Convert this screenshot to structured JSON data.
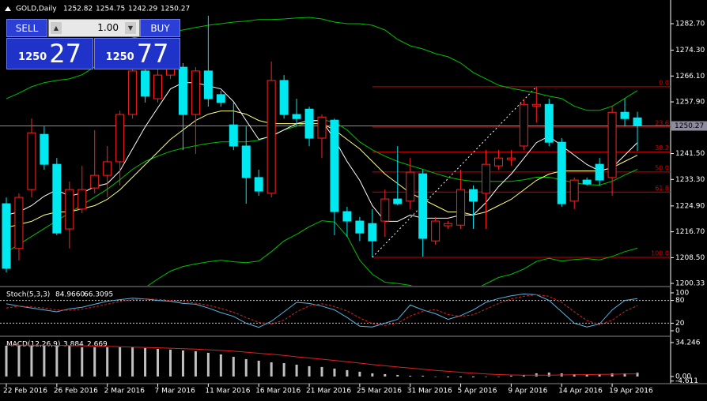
{
  "chart_data": {
    "type": "candlestick",
    "symbol": "GOLD,Daily",
    "bull_color": "#ff2020",
    "bear_color": "#00e8f0",
    "categories": [
      "22 Feb 2016",
      null,
      null,
      null,
      "26 Feb 2016",
      null,
      null,
      null,
      "2 Mar 2016",
      null,
      null,
      null,
      "7 Mar 2016",
      null,
      null,
      null,
      "11 Mar 2016",
      null,
      null,
      null,
      "16 Mar 2016",
      null,
      null,
      null,
      "21 Mar 2016",
      null,
      null,
      null,
      "25 Mar 2016",
      null,
      null,
      null,
      "31 Mar 2016",
      null,
      null,
      null,
      "5 Apr 2016",
      null,
      null,
      null,
      "9 Apr 2016",
      null,
      null,
      null,
      "14 Apr 2016",
      null,
      null,
      null,
      "19 Apr 2016",
      null,
      null
    ],
    "candles": [
      [
        1225.6,
        1227.6,
        1203.8,
        1205.1
      ],
      [
        1211.4,
        1228.9,
        1207.6,
        1227.6
      ],
      [
        1230.1,
        1252.6,
        1227.6,
        1248.1
      ],
      [
        1247.6,
        1250.1,
        1236.4,
        1238.1
      ],
      [
        1238.1,
        1240.1,
        1215.6,
        1216.3
      ],
      [
        1217.6,
        1232.6,
        1211.4,
        1230.1
      ],
      [
        1223.9,
        1237.6,
        1222.6,
        1230.1
      ],
      [
        1230.6,
        1248.9,
        1228.9,
        1234.6
      ],
      [
        1234.6,
        1243.9,
        1227.6,
        1238.9
      ],
      [
        1238.9,
        1255.1,
        1231.4,
        1253.9
      ],
      [
        1253.9,
        1270.2,
        1252.6,
        1267.7
      ],
      [
        1267.7,
        1271.4,
        1257.7,
        1259.7
      ],
      [
        1258.9,
        1270.2,
        1257.7,
        1266.4
      ],
      [
        1266.4,
        1271.4,
        1265.2,
        1268.9
      ],
      [
        1268.9,
        1270.2,
        1242.6,
        1253.9
      ],
      [
        1253.9,
        1268.9,
        1241.4,
        1267.7
      ],
      [
        1267.7,
        1285.2,
        1256.4,
        1258.9
      ],
      [
        1260.2,
        1261.4,
        1256.4,
        1257.7
      ],
      [
        1250.6,
        1257.7,
        1242.6,
        1243.9
      ],
      [
        1243.9,
        1250.1,
        1225.6,
        1233.9
      ],
      [
        1233.9,
        1236.4,
        1228.1,
        1229.6
      ],
      [
        1228.9,
        1270.7,
        1227.6,
        1264.7
      ],
      [
        1264.7,
        1266.4,
        1252.6,
        1253.9
      ],
      [
        1253.9,
        1258.9,
        1250.1,
        1252.6
      ],
      [
        1255.6,
        1256.4,
        1243.9,
        1246.4
      ],
      [
        1246.4,
        1253.9,
        1240.1,
        1253.1
      ],
      [
        1252.1,
        1252.6,
        1215.6,
        1223.1
      ],
      [
        1223.1,
        1224.6,
        1215.1,
        1220.1
      ],
      [
        1220.1,
        1221.4,
        1213.8,
        1216.3
      ],
      [
        1219.3,
        1223.9,
        1208.6,
        1213.8
      ],
      [
        1220.1,
        1230.1,
        1215.1,
        1227.1
      ],
      [
        1227.1,
        1243.9,
        1225.1,
        1225.6
      ],
      [
        1226.4,
        1240.1,
        1223.9,
        1235.6
      ],
      [
        1235.1,
        1236.4,
        1208.8,
        1214.6
      ],
      [
        1213.8,
        1221.4,
        1212.6,
        1220.1
      ],
      [
        1218.6,
        1220.1,
        1217.6,
        1219.3
      ],
      [
        1218.8,
        1236.4,
        1217.6,
        1230.1
      ],
      [
        1230.1,
        1231.4,
        1217.6,
        1226.4
      ],
      [
        1228.9,
        1242.6,
        1217.6,
        1238.1
      ],
      [
        1237.6,
        1242.6,
        1236.4,
        1240.1
      ],
      [
        1239.6,
        1242.6,
        1237.6,
        1240.1
      ],
      [
        1243.9,
        1258.9,
        1242.6,
        1257.1
      ],
      [
        1256.6,
        1262.7,
        1251.4,
        1257.1
      ],
      [
        1257.1,
        1258.9,
        1243.9,
        1245.1
      ],
      [
        1245.1,
        1246.4,
        1224.6,
        1225.6
      ],
      [
        1226.4,
        1233.9,
        1223.9,
        1233.1
      ],
      [
        1233.1,
        1233.9,
        1231.4,
        1231.9
      ],
      [
        1238.1,
        1240.1,
        1231.4,
        1233.1
      ],
      [
        1233.9,
        1256.4,
        1228.1,
        1254.6
      ],
      [
        1254.6,
        1258.9,
        1250.1,
        1252.6
      ],
      [
        1252.82,
        1254.75,
        1242.29,
        1250.27
      ]
    ],
    "ylim": [
      1199.58,
      1290.21
    ],
    "yticks": [
      {
        "value": 1282.7,
        "label": "1282.70"
      },
      {
        "value": 1274.3,
        "label": "1274.30"
      },
      {
        "value": 1266.1,
        "label": "1266.10"
      },
      {
        "value": 1257.9,
        "label": "1257.90"
      },
      {
        "value": 1241.5,
        "label": "1241.50"
      },
      {
        "value": 1233.3,
        "label": "1233.30"
      },
      {
        "value": 1224.9,
        "label": "1224.90"
      },
      {
        "value": 1216.7,
        "label": "1216.70"
      },
      {
        "value": 1208.5,
        "label": "1208.50"
      },
      1200.33
    ],
    "indicators": [
      {
        "color": "#00c000",
        "values": [
          1258.9,
          1260.7,
          1262.7,
          1264.0,
          1264.7,
          1265.2,
          1266.5,
          1269.0,
          1272.7,
          1276.5,
          1278.2,
          1279.0,
          1279.7,
          1280.2,
          1280.7,
          1281.5,
          1282.2,
          1282.7,
          1283.2,
          1283.5,
          1284.0,
          1284.0,
          1284.2,
          1284.5,
          1284.7,
          1284.2,
          1283.2,
          1282.7,
          1282.7,
          1282.2,
          1280.7,
          1277.7,
          1275.7,
          1274.7,
          1273.2,
          1272.2,
          1270.2,
          1267.2,
          1265.2,
          1263.2,
          1262.2,
          1261.5,
          1260.7,
          1259.7,
          1259.0,
          1256.5,
          1255.2,
          1255.2,
          1256.5,
          1259.0,
          1261.5
        ]
      },
      {
        "color": "#00c000",
        "values": [
          1210.2,
          1212.7,
          1215.2,
          1217.7,
          1220.2,
          1222.7,
          1225.2,
          1227.7,
          1230.2,
          1233.2,
          1236.5,
          1239.0,
          1240.7,
          1242.2,
          1243.2,
          1244.0,
          1244.7,
          1245.2,
          1245.2,
          1245.2,
          1245.7,
          1247.2,
          1249.0,
          1250.2,
          1251.5,
          1252.2,
          1251.5,
          1249.0,
          1245.2,
          1242.7,
          1240.7,
          1239.0,
          1237.7,
          1236.5,
          1235.2,
          1234.0,
          1233.2,
          1232.7,
          1232.7,
          1232.7,
          1232.7,
          1233.2,
          1234.0,
          1234.0,
          1233.2,
          1232.2,
          1231.7,
          1231.5,
          1232.7,
          1234.7,
          1236.5
        ]
      },
      {
        "color": "#00c000",
        "values": [
          1161.5,
          1164.7,
          1167.7,
          1171.4,
          1175.7,
          1180.2,
          1183.9,
          1186.4,
          1187.7,
          1189.9,
          1194.8,
          1199.0,
          1201.7,
          1204.2,
          1205.7,
          1206.5,
          1207.2,
          1207.7,
          1207.2,
          1206.9,
          1207.4,
          1210.4,
          1213.8,
          1215.9,
          1218.3,
          1220.2,
          1219.8,
          1215.3,
          1207.7,
          1203.2,
          1200.7,
          1200.3,
          1199.7,
          1198.3,
          1197.2,
          1195.8,
          1196.2,
          1198.2,
          1200.2,
          1202.2,
          1203.2,
          1204.9,
          1207.3,
          1208.3,
          1207.4,
          1207.9,
          1208.2,
          1207.8,
          1208.9,
          1210.4,
          1211.5
        ]
      },
      {
        "color": "#ffff80",
        "values": [
          1218,
          1219,
          1220,
          1222,
          1223,
          1223,
          1224,
          1225,
          1227,
          1230,
          1234,
          1238,
          1242,
          1246,
          1249,
          1252,
          1254,
          1255,
          1255,
          1254,
          1252,
          1251,
          1251,
          1251,
          1251,
          1251,
          1249,
          1246,
          1243,
          1239,
          1235,
          1232,
          1229,
          1227,
          1225,
          1223,
          1223,
          1222,
          1223,
          1225,
          1227,
          1230,
          1233,
          1235,
          1236,
          1236,
          1236,
          1236,
          1237,
          1239,
          1241
        ]
      },
      {
        "color": "#ffffff",
        "values": [
          1222,
          1223,
          1225,
          1228,
          1230,
          1228,
          1229,
          1231,
          1232,
          1236,
          1243,
          1250,
          1256,
          1262,
          1264,
          1264,
          1263,
          1262,
          1258,
          1252,
          1246,
          1247,
          1249,
          1251,
          1252,
          1252,
          1246,
          1239,
          1233,
          1225,
          1220,
          1220,
          1222,
          1221,
          1221,
          1221,
          1222,
          1222,
          1226,
          1231,
          1235,
          1240,
          1245,
          1247,
          1244,
          1241,
          1238,
          1236,
          1237,
          1241,
          1245
        ]
      }
    ],
    "fib": {
      "color": "#d00000",
      "levels": [
        {
          "value": 0,
          "label": "0.0"
        },
        23.6,
        38.2,
        {
          "value": 50,
          "label": "50.0"
        },
        61.8,
        {
          "value": 100,
          "label": "100.0"
        }
      ],
      "prices": [
        1262.7,
        1249.9,
        1242.0,
        1235.65,
        1229.3,
        1208.6
      ]
    },
    "trade_panel": {
      "sell": "SELL",
      "buy": "BUY",
      "lots": "1.00",
      "bid_big": "1250",
      "bid": "27",
      "ask_big": "1250",
      "ask": "77"
    },
    "stoch": {
      "title": "Stoch(5,3,3)",
      "value_labels": [
        "84.9660",
        "66.3095"
      ],
      "grid": true,
      "ylim": [
        -10.4,
        112.5
      ],
      "yticks": [
        100,
        80,
        20,
        0
      ],
      "main": [
        71,
        65,
        60,
        55,
        50,
        58,
        62,
        70,
        78,
        82,
        86,
        84,
        80,
        78,
        72,
        70,
        60,
        48,
        38,
        20,
        9,
        25,
        50,
        75,
        72,
        65,
        55,
        35,
        12,
        10,
        20,
        30,
        68,
        55,
        45,
        30,
        40,
        55,
        75,
        85,
        92,
        97,
        95,
        80,
        50,
        20,
        10,
        18,
        55,
        80,
        84.966
      ],
      "main_color": "#5ab4e0",
      "signal": [
        60,
        65,
        63,
        60,
        55,
        54,
        57,
        63,
        70,
        77,
        82,
        84,
        83,
        80,
        77,
        73,
        67,
        59,
        49,
        35,
        22,
        18,
        28,
        50,
        66,
        71,
        64,
        52,
        34,
        19,
        14,
        20,
        39,
        51,
        56,
        43,
        38,
        42,
        57,
        72,
        84,
        91,
        95,
        91,
        75,
        50,
        27,
        16,
        28,
        51,
        66.3095
      ],
      "signal_color": "#e02020"
    },
    "macd": {
      "title": "MACD(12,26,9)",
      "ylim": [
        -7.2,
        39.0
      ],
      "yticks": [
        34.246,
        {
          "value": 0,
          "label": "0.00"
        },
        -4.611
      ],
      "values": [
        31.1,
        31.1,
        31.1,
        31.1,
        31.1,
        31.1,
        29.5,
        29.5,
        29.5,
        29.5,
        29.5,
        28.7,
        27.9,
        27.1,
        26.3,
        25.5,
        23.9,
        22.3,
        19.9,
        17.5,
        15.9,
        14.3,
        13.5,
        11.9,
        10.4,
        9.6,
        8.0,
        6.4,
        4.8,
        3.2,
        2.4,
        1.6,
        0.8,
        0.8,
        0,
        -0.8,
        -0.8,
        -0.8,
        0,
        0,
        0.8,
        1.6,
        3.2,
        4.0,
        3.2,
        2.4,
        2.4,
        2.4,
        3.2,
        3.2,
        3.884
      ],
      "bar_color": "#c0c0c0",
      "signal": [
        31.5,
        31.6,
        31.6,
        31.5,
        31.4,
        31.2,
        31.0,
        30.7,
        30.4,
        30.0,
        29.7,
        29.4,
        29.0,
        28.6,
        28.1,
        27.6,
        27.0,
        26.3,
        25.5,
        24.6,
        23.5,
        22.4,
        21.2,
        19.9,
        18.7,
        17.5,
        16.2,
        14.9,
        13.5,
        12.1,
        10.8,
        9.6,
        8.5,
        7.3,
        6.2,
        5.2,
        4.3,
        3.4,
        2.6,
        2.0,
        1.6,
        1.4,
        1.3,
        1.4,
        1.6,
        1.7,
        1.9,
        2.1,
        2.3,
        2.5,
        2.669
      ],
      "signal_color": "#e02020"
    }
  }
}
